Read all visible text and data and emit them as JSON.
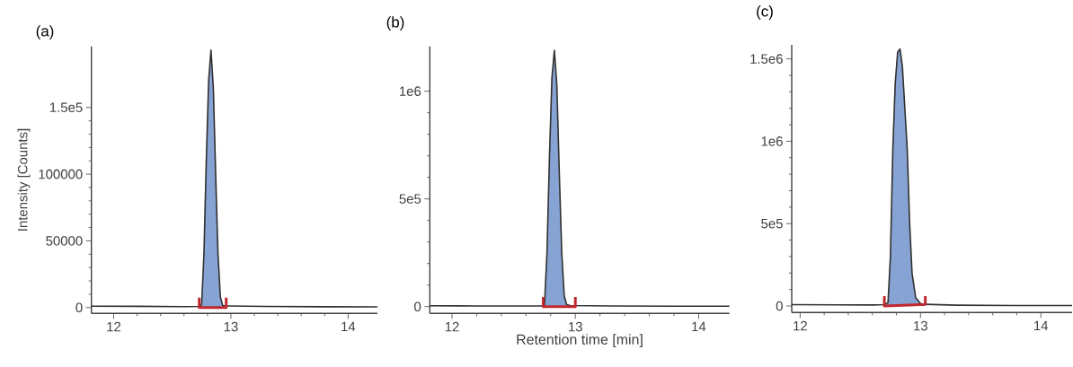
{
  "chart_data": [
    {
      "type": "line",
      "title": "(a)",
      "ylabel": "Intensity [Counts]",
      "xlim": [
        11.81,
        14.25
      ],
      "xticks": [
        12,
        13,
        14
      ],
      "ylim": [
        -4400,
        195800
      ],
      "yticks": [
        0,
        50000,
        100000,
        {
          "value": 150000,
          "label": "1.5e5"
        }
      ],
      "series": [
        {
          "type": "area",
          "color": "#87a3d3",
          "x": [
            12.73,
            12.75,
            12.77,
            12.79,
            12.81,
            12.83,
            12.85,
            12.87,
            12.89,
            12.91,
            12.93,
            12.96
          ],
          "values": [
            800,
            2000,
            40000,
            110000,
            170000,
            193000,
            165000,
            100000,
            40000,
            8000,
            1500,
            1200
          ]
        },
        {
          "color": "#303030",
          "x": [
            11.81,
            12.2,
            12.6,
            12.73,
            12.75,
            12.77,
            12.79,
            12.81,
            12.83,
            12.85,
            12.87,
            12.89,
            12.91,
            12.93,
            12.96,
            13.3,
            13.8,
            14.25
          ],
          "values": [
            1000,
            900,
            700,
            800,
            2000,
            40000,
            110000,
            170000,
            193000,
            165000,
            100000,
            40000,
            8000,
            1500,
            1200,
            800,
            600,
            500
          ]
        },
        {
          "color": "#c0282d",
          "x": [
            12.73,
            12.73,
            12.96,
            12.96
          ],
          "values": [
            7400,
            0,
            0,
            7400
          ]
        }
      ]
    },
    {
      "type": "line",
      "title": "(b)",
      "xlabel": "Retention time [min]",
      "xlim": [
        11.82,
        14.25
      ],
      "xticks": [
        12,
        13,
        14
      ],
      "ylim": [
        -31700,
        1208000
      ],
      "yticks": [
        0,
        {
          "value": 500000,
          "label": "5e5"
        },
        {
          "value": 1000000,
          "label": "1e6"
        }
      ],
      "series": [
        {
          "type": "area",
          "color": "#87a3d3",
          "x": [
            12.74,
            12.75,
            12.77,
            12.79,
            12.81,
            12.83,
            12.85,
            12.87,
            12.89,
            12.91,
            12.93,
            12.96
          ],
          "values": [
            3000,
            8000,
            250000,
            690000,
            1060000,
            1190000,
            1030000,
            620000,
            250000,
            50000,
            9000,
            5000
          ]
        },
        {
          "color": "#303030",
          "x": [
            11.82,
            12.2,
            12.6,
            12.74,
            12.75,
            12.77,
            12.79,
            12.81,
            12.83,
            12.85,
            12.87,
            12.89,
            12.91,
            12.93,
            12.96,
            13.3,
            13.8,
            14.25
          ],
          "values": [
            4000,
            3000,
            3000,
            3000,
            8000,
            250000,
            690000,
            1060000,
            1190000,
            1030000,
            620000,
            250000,
            50000,
            9000,
            5000,
            3000,
            2000,
            2000
          ]
        },
        {
          "color": "#c0282d",
          "x": [
            12.74,
            12.74,
            13.0,
            13.0
          ],
          "values": [
            45000,
            0,
            0,
            45000
          ]
        }
      ]
    },
    {
      "type": "line",
      "title": "(c)",
      "xlim": [
        11.93,
        14.26
      ],
      "xticks": [
        12,
        13,
        14
      ],
      "ylim": [
        -39700,
        1585000
      ],
      "yticks": [
        0,
        {
          "value": 500000,
          "label": "5e5"
        },
        {
          "value": 1000000,
          "label": "1e6"
        },
        {
          "value": 1500000,
          "label": "1.5e6"
        }
      ],
      "series": [
        {
          "type": "area",
          "color": "#87a3d3",
          "x": [
            12.7,
            12.73,
            12.75,
            12.77,
            12.79,
            12.81,
            12.83,
            12.85,
            12.87,
            12.89,
            12.91,
            12.93,
            12.96,
            13.0,
            13.04
          ],
          "values": [
            8000,
            20000,
            300000,
            950000,
            1350000,
            1540000,
            1560000,
            1450000,
            1200000,
            950000,
            500000,
            200000,
            50000,
            15000,
            10000
          ]
        },
        {
          "color": "#303030",
          "x": [
            11.93,
            12.3,
            12.6,
            12.7,
            12.73,
            12.75,
            12.77,
            12.79,
            12.81,
            12.83,
            12.85,
            12.87,
            12.89,
            12.91,
            12.93,
            12.96,
            13.0,
            13.04,
            13.3,
            13.8,
            14.26
          ],
          "values": [
            8000,
            7000,
            6000,
            8000,
            20000,
            300000,
            950000,
            1350000,
            1540000,
            1560000,
            1450000,
            1200000,
            950000,
            500000,
            200000,
            50000,
            15000,
            10000,
            5000,
            3000,
            3000
          ]
        },
        {
          "color": "#c0282d",
          "x": [
            12.7,
            12.7,
            13.04,
            13.04
          ],
          "values": [
            60000,
            0,
            10000,
            60000
          ]
        }
      ]
    }
  ]
}
